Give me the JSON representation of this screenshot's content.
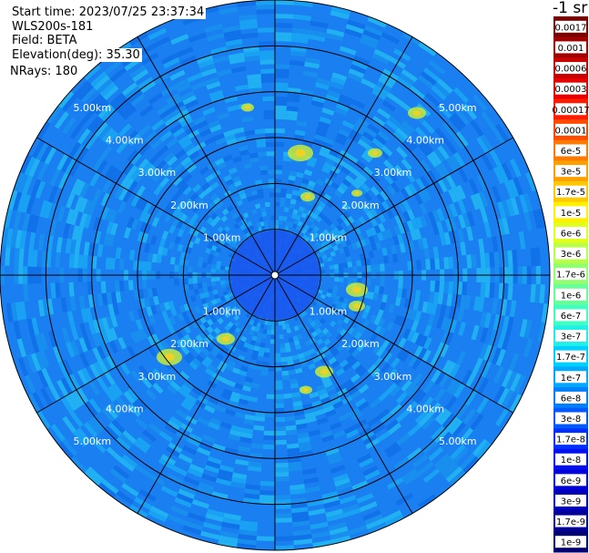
{
  "header": {
    "start_time": "Start time: 2023/07/25 23:37:34",
    "instrument": "WLS200s-181",
    "field": "Field: BETA",
    "elevation": "Elevation(deg): 35.30",
    "nrays": "NRays: 180"
  },
  "colorbar": {
    "title": "-1 sr",
    "labels": [
      "0.0017",
      "0.001",
      "0.0006",
      "0.0003",
      "0.00017",
      "0.0001",
      "6e-5",
      "3e-5",
      "1.7e-5",
      "1e-5",
      "6e-6",
      "3e-6",
      "1.7e-6",
      "1e-6",
      "6e-7",
      "3e-7",
      "1.7e-7",
      "1e-7",
      "6e-8",
      "3e-8",
      "1.7e-8",
      "1e-8",
      "6e-9",
      "3e-9",
      "1.7e-9",
      "1e-9"
    ],
    "colors": [
      "#7a0000",
      "#a00000",
      "#c80000",
      "#e60000",
      "#ff1a00",
      "#ff4a00",
      "#ff7a00",
      "#ffa000",
      "#ffc800",
      "#fff000",
      "#e0ff1c",
      "#b8ff48",
      "#90ff70",
      "#68ff98",
      "#40ffc0",
      "#20f0e8",
      "#00d0ff",
      "#00a8ff",
      "#0080ff",
      "#0058ff",
      "#0030ff",
      "#0010f0",
      "#0000d8",
      "#0000b8",
      "#000098",
      "#000070"
    ]
  },
  "chart_data": {
    "type": "ppi",
    "field": "BETA",
    "elevation_deg": 35.3,
    "nrays": 180,
    "range_rings_km": [
      1.0,
      2.0,
      3.0,
      4.0,
      5.0
    ],
    "ring_labels": [
      "1.00km",
      "2.00km",
      "3.00km",
      "4.00km",
      "5.00km"
    ],
    "max_range_km": 6.0,
    "spokes_deg": [
      0,
      30,
      60,
      90,
      120,
      150,
      180,
      210,
      240,
      270,
      300,
      330
    ],
    "background_color": "#1a7ff0",
    "speckle_colors": [
      "#1aa8f5",
      "#0f6fe8",
      "#23b8f2",
      "#1990ef"
    ],
    "near_field_color": "#1a57ee",
    "mid_field_color": "#2ab6ec",
    "echo_color": "#c8ea3a",
    "echo_edge_color": "#f6d020"
  }
}
